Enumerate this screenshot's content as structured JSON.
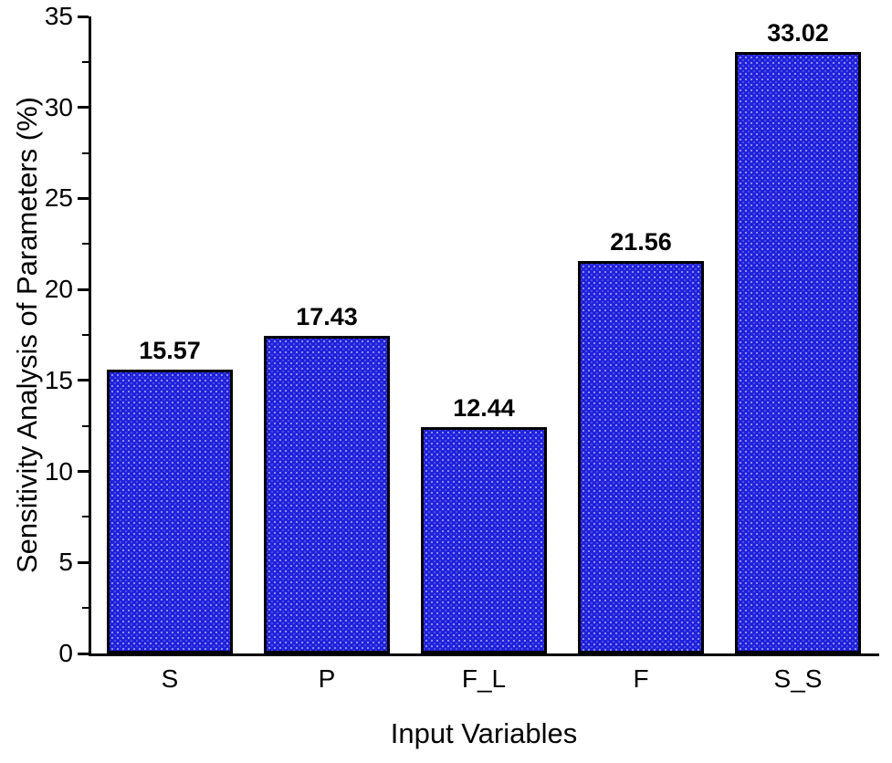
{
  "chart_data": {
    "type": "bar",
    "title": "",
    "categories": [
      "S",
      "P",
      "F_L",
      "F",
      "S_S"
    ],
    "values": [
      15.57,
      17.43,
      12.44,
      21.56,
      33.02
    ],
    "value_labels": [
      "15.57",
      "17.43",
      "12.44",
      "21.56",
      "33.02"
    ],
    "xlabel": "Input Variables",
    "ylabel": "Sensitivity Analysis of Parameters (%)",
    "ylim": [
      0,
      35
    ],
    "y_major_ticks": [
      0,
      5,
      10,
      15,
      20,
      25,
      30,
      35
    ],
    "y_minor_ticks": [
      2.5,
      7.5,
      12.5,
      17.5,
      22.5,
      27.5,
      32.5
    ],
    "bar_fill_color": "#1f1fd9",
    "bar_border_color": "#000000",
    "axis_color": "#000000",
    "grid": false,
    "legend": "none"
  }
}
